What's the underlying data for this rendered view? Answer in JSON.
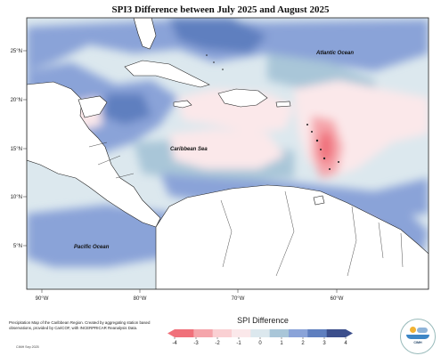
{
  "title": "SPI3 Difference between July 2025 and August 2025",
  "labels": {
    "atlantic": "Atlantic Ocean",
    "caribbean": "Caribbean Sea",
    "pacific": "Pacific Ocean"
  },
  "lat_ticks": [
    "25°N",
    "20°N",
    "15°N",
    "10°N",
    "5°N"
  ],
  "lon_ticks": [
    "90°W",
    "80°W",
    "70°W",
    "60°W"
  ],
  "colorbar": {
    "title": "SPI Difference",
    "ticks": [
      "-4",
      "-3",
      "-2",
      "-1",
      "0",
      "1",
      "2",
      "3",
      "4"
    ],
    "colors": [
      "#f0707a",
      "#f5a5ab",
      "#fad0d3",
      "#fbe8ea",
      "#dce8ee",
      "#a9c6d8",
      "#8aa3d8",
      "#5f7fbf",
      "#3c4f8c"
    ]
  },
  "credit": "Precipitation Map of the Caribbean Region. Created by aggregating station based observations, provided by CariCOF, with INCERPRICAR Reanalysis Data.",
  "stamp": "CIMH Sep 2025",
  "logo_text": "CIMH",
  "fill_colors": {
    "ocean": "#ffffff",
    "land": "#ffffff",
    "neutral": "#dce8ee",
    "wet_light": "#a9c6d8",
    "wet": "#8aa3d8",
    "wet_deep": "#5f7fbf",
    "wet_max": "#3c4f8c",
    "dry_light": "#fbe8ea",
    "dry": "#f5a5ab",
    "dry_deep": "#f0707a"
  }
}
